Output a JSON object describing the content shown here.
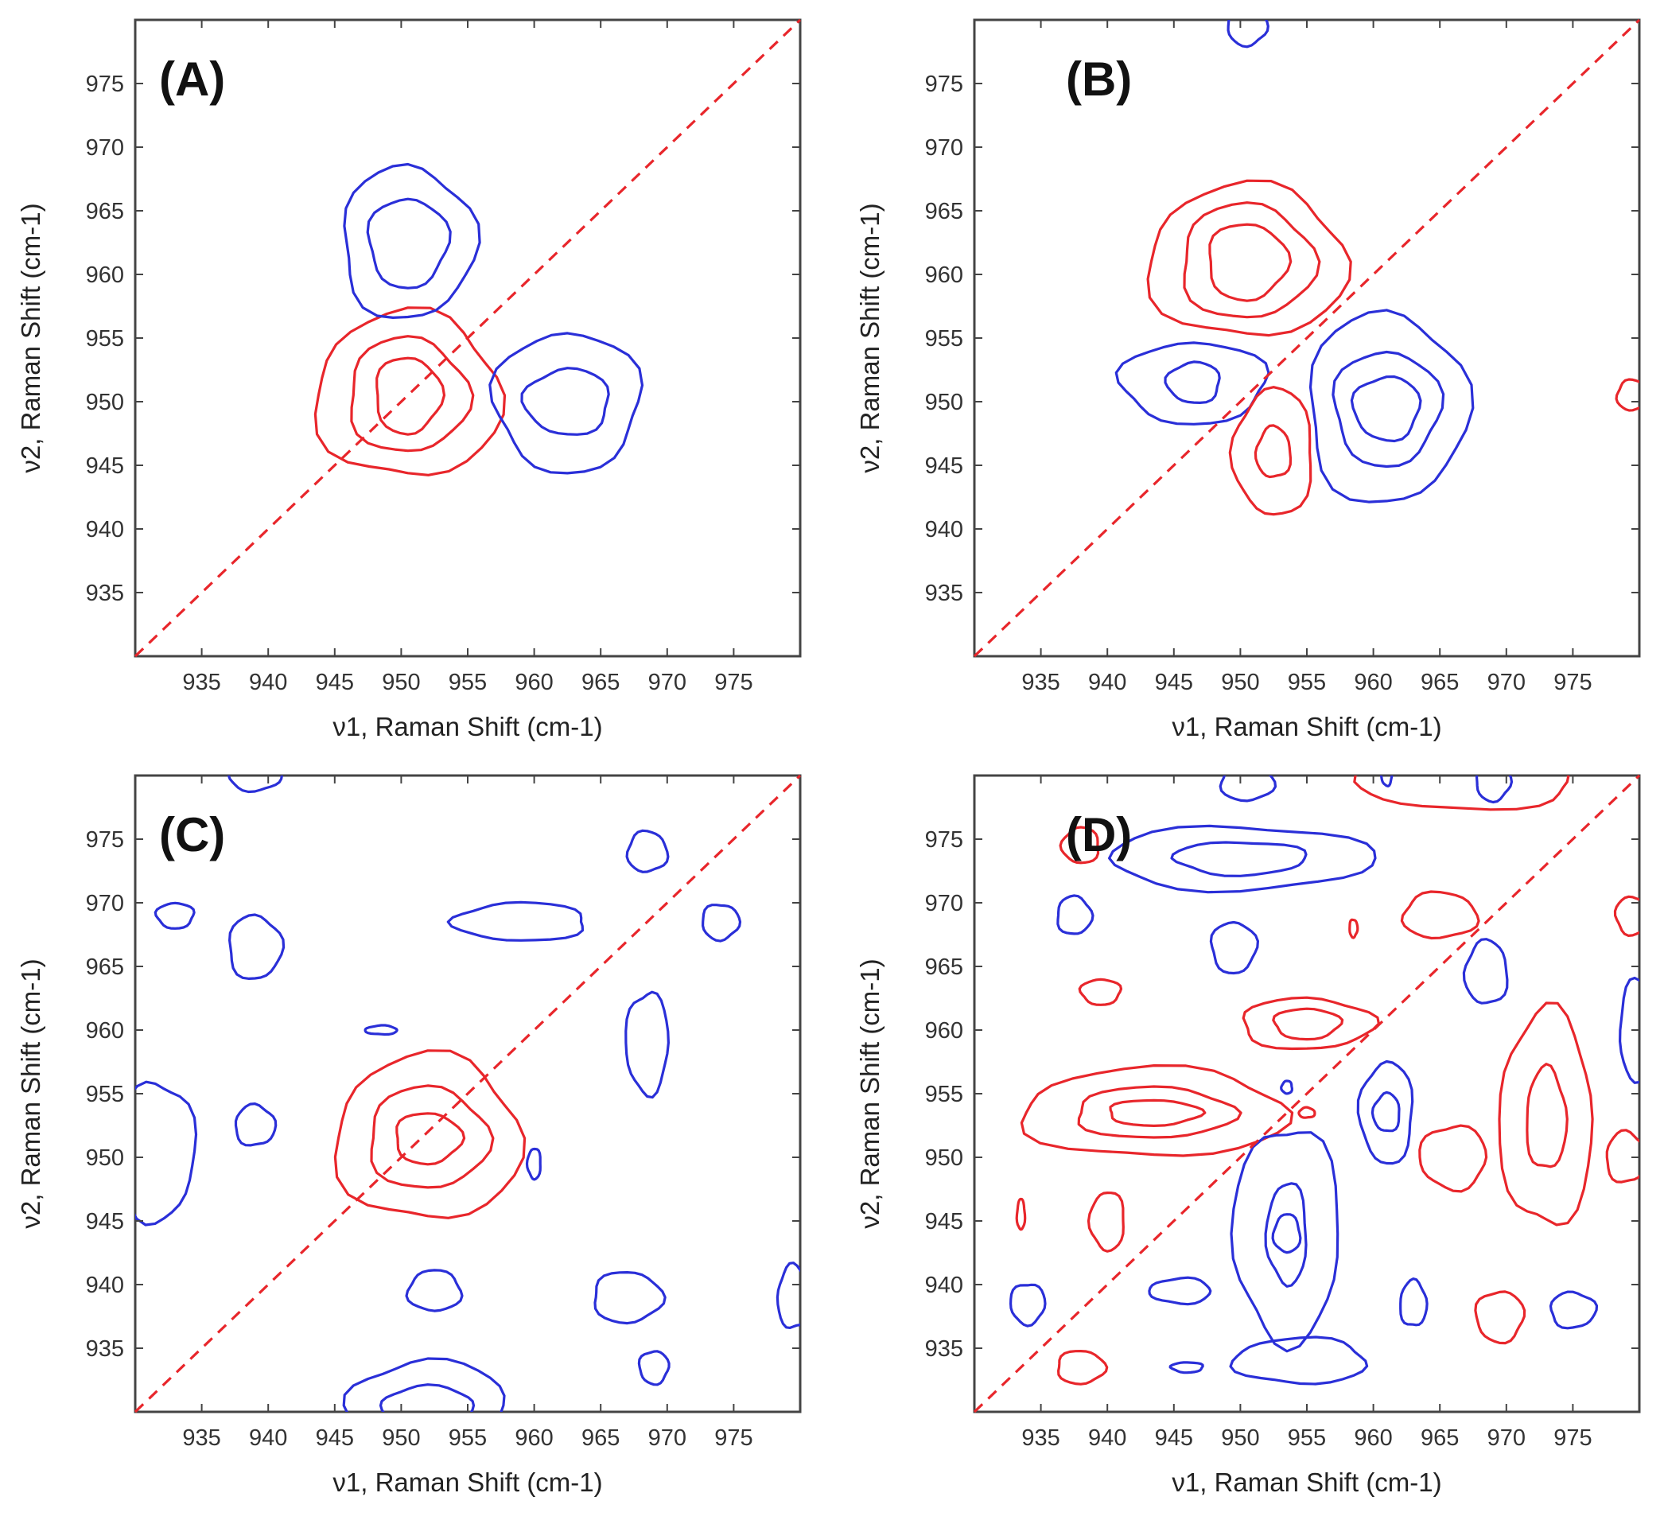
{
  "chart_data": [
    {
      "type": "contour",
      "panel": "(A)",
      "xlabel": "ν1, Raman Shift (cm-1)",
      "ylabel": "ν2, Raman Shift (cm-1)",
      "xlim": [
        930,
        980
      ],
      "ylim": [
        930,
        980
      ],
      "xticks": [
        935,
        940,
        945,
        950,
        955,
        960,
        965,
        970,
        975
      ],
      "yticks": [
        935,
        940,
        945,
        950,
        955,
        960,
        965,
        970,
        975
      ],
      "diagonal": true,
      "contours": [
        {
          "sign": "positive",
          "cx": 950.5,
          "cy": 950.5,
          "radii": [
            [
              7,
              6.5
            ],
            [
              4.5,
              4.5
            ],
            [
              2.5,
              3
            ]
          ]
        },
        {
          "sign": "negative",
          "cx": 950.5,
          "cy": 962.5,
          "radii": [
            [
              5,
              6
            ],
            [
              3,
              3.5
            ]
          ]
        },
        {
          "sign": "negative",
          "cx": 962.5,
          "cy": 950,
          "radii": [
            [
              5.5,
              5.5
            ],
            [
              3.2,
              2.6
            ]
          ]
        }
      ]
    },
    {
      "type": "contour",
      "panel": "(B)",
      "xlabel": "ν1, Raman Shift (cm-1)",
      "ylabel": "ν2, Raman Shift (cm-1)",
      "xlim": [
        930,
        980
      ],
      "ylim": [
        930,
        980
      ],
      "xticks": [
        935,
        940,
        945,
        950,
        955,
        960,
        965,
        970,
        975
      ],
      "yticks": [
        935,
        940,
        945,
        950,
        955,
        960,
        965,
        970,
        975
      ],
      "diagonal": true,
      "contours": [
        {
          "sign": "positive",
          "cx": 950.5,
          "cy": 961,
          "radii": [
            [
              7.5,
              6
            ],
            [
              5,
              4.5
            ],
            [
              3,
              3
            ]
          ]
        },
        {
          "sign": "negative",
          "cx": 961,
          "cy": 949.5,
          "radii": [
            [
              6,
              7.5
            ],
            [
              4,
              4.5
            ],
            [
              2.5,
              2.5
            ]
          ]
        },
        {
          "sign": "negative",
          "cx": 946.5,
          "cy": 951.5,
          "radii": [
            [
              5.5,
              3.2
            ],
            [
              2,
              1.6
            ]
          ]
        },
        {
          "sign": "positive",
          "cx": 952.5,
          "cy": 946,
          "radii": [
            [
              3,
              5
            ],
            [
              1.3,
              2
            ]
          ]
        },
        {
          "sign": "positive",
          "cx": 979.5,
          "cy": 950.5,
          "radii": [
            [
              1.2,
              1.2
            ]
          ]
        },
        {
          "sign": "negative",
          "cx": 950.5,
          "cy": 979.5,
          "radii": [
            [
              1.5,
              1.5
            ]
          ]
        }
      ]
    },
    {
      "type": "contour",
      "panel": "(C)",
      "xlabel": "ν1, Raman Shift (cm-1)",
      "ylabel": "ν2, Raman Shift (cm-1)",
      "xlim": [
        930,
        980
      ],
      "ylim": [
        930,
        980
      ],
      "xticks": [
        935,
        940,
        945,
        950,
        955,
        960,
        965,
        970,
        975
      ],
      "yticks": [
        935,
        940,
        945,
        950,
        955,
        960,
        965,
        970,
        975
      ],
      "diagonal": true,
      "contours": [
        {
          "sign": "positive",
          "cx": 952,
          "cy": 951.5,
          "radii": [
            [
              7,
              6.5
            ],
            [
              4.5,
              4
            ],
            [
              2.5,
              2
            ]
          ]
        },
        {
          "sign": "negative",
          "cx": 939,
          "cy": 966.5,
          "radii": [
            [
              2,
              2.5
            ]
          ]
        },
        {
          "sign": "negative",
          "cx": 933,
          "cy": 969,
          "radii": [
            [
              1.4,
              1
            ]
          ]
        },
        {
          "sign": "negative",
          "cx": 959,
          "cy": 968.5,
          "radii": [
            [
              5,
              1.5
            ]
          ]
        },
        {
          "sign": "negative",
          "cx": 968.5,
          "cy": 974,
          "radii": [
            [
              1.5,
              1.6
            ]
          ]
        },
        {
          "sign": "negative",
          "cx": 974,
          "cy": 968.5,
          "radii": [
            [
              1.4,
              1.4
            ]
          ]
        },
        {
          "sign": "negative",
          "cx": 968.5,
          "cy": 959,
          "radii": [
            [
              1.6,
              4
            ]
          ]
        },
        {
          "sign": "negative",
          "cx": 948.5,
          "cy": 960,
          "radii": [
            [
              1.2,
              0.35
            ]
          ]
        },
        {
          "sign": "negative",
          "cx": 939,
          "cy": 952.5,
          "radii": [
            [
              1.5,
              1.6
            ]
          ]
        },
        {
          "sign": "negative",
          "cx": 931.5,
          "cy": 950.5,
          "radii": [
            [
              3,
              5.5
            ]
          ]
        },
        {
          "sign": "negative",
          "cx": 960,
          "cy": 949.5,
          "radii": [
            [
              0.5,
              1.2
            ]
          ]
        },
        {
          "sign": "negative",
          "cx": 952.5,
          "cy": 939.5,
          "radii": [
            [
              2,
              1.6
            ]
          ]
        },
        {
          "sign": "negative",
          "cx": 967,
          "cy": 939,
          "radii": [
            [
              2.6,
              2
            ]
          ]
        },
        {
          "sign": "negative",
          "cx": 969,
          "cy": 933.5,
          "radii": [
            [
              1.1,
              1.3
            ]
          ]
        },
        {
          "sign": "negative",
          "cx": 952,
          "cy": 930.5,
          "radii": [
            [
              6,
              3.5
            ],
            [
              3.5,
              1.5
            ]
          ]
        },
        {
          "sign": "negative",
          "cx": 979.5,
          "cy": 939,
          "radii": [
            [
              1.2,
              2.5
            ]
          ]
        },
        {
          "sign": "negative",
          "cx": 939,
          "cy": 980,
          "radii": [
            [
              2,
              1.2
            ]
          ]
        }
      ]
    },
    {
      "type": "contour",
      "panel": "(D)",
      "xlabel": "ν1, Raman Shift (cm-1)",
      "ylabel": "ν2, Raman Shift (cm-1)",
      "xlim": [
        930,
        980
      ],
      "ylim": [
        930,
        980
      ],
      "xticks": [
        935,
        940,
        945,
        950,
        955,
        960,
        965,
        970,
        975
      ],
      "yticks": [
        935,
        940,
        945,
        950,
        955,
        960,
        965,
        970,
        975
      ],
      "diagonal": true,
      "contours": [
        {
          "sign": "positive",
          "cx": 943.5,
          "cy": 953.5,
          "radii": [
            [
              10,
              3.5
            ],
            [
              6,
              2
            ],
            [
              3.5,
              1
            ]
          ]
        },
        {
          "sign": "positive",
          "cx": 955,
          "cy": 960.5,
          "radii": [
            [
              5,
              2
            ],
            [
              2.5,
              1.2
            ]
          ]
        },
        {
          "sign": "positive",
          "cx": 939.5,
          "cy": 963,
          "radii": [
            [
              1.5,
              1
            ]
          ]
        },
        {
          "sign": "positive",
          "cx": 938,
          "cy": 974.5,
          "radii": [
            [
              1.4,
              1.4
            ]
          ]
        },
        {
          "sign": "positive",
          "cx": 965,
          "cy": 969,
          "radii": [
            [
              2.8,
              1.8
            ]
          ]
        },
        {
          "sign": "positive",
          "cx": 958.5,
          "cy": 968,
          "radii": [
            [
              0.3,
              0.7
            ]
          ]
        },
        {
          "sign": "positive",
          "cx": 966,
          "cy": 950,
          "radii": [
            [
              2.5,
              2.5
            ]
          ]
        },
        {
          "sign": "positive",
          "cx": 973,
          "cy": 953,
          "radii": [
            [
              3.5,
              8.5
            ],
            [
              1.5,
              4
            ]
          ]
        },
        {
          "sign": "positive",
          "cx": 979,
          "cy": 950,
          "radii": [
            [
              1.5,
              2
            ]
          ]
        },
        {
          "sign": "positive",
          "cx": 979.5,
          "cy": 969,
          "radii": [
            [
              1.3,
              1.5
            ]
          ]
        },
        {
          "sign": "positive",
          "cx": 940,
          "cy": 945,
          "radii": [
            [
              1.3,
              2.3
            ]
          ]
        },
        {
          "sign": "positive",
          "cx": 933.5,
          "cy": 945.5,
          "radii": [
            [
              0.3,
              1.2
            ]
          ]
        },
        {
          "sign": "positive",
          "cx": 938,
          "cy": 933.5,
          "radii": [
            [
              1.8,
              1.3
            ]
          ]
        },
        {
          "sign": "positive",
          "cx": 969.5,
          "cy": 937.5,
          "radii": [
            [
              1.8,
              2
            ]
          ]
        },
        {
          "sign": "positive",
          "cx": 967,
          "cy": 979.5,
          "radii": [
            [
              8,
              2.2
            ]
          ]
        },
        {
          "sign": "positive",
          "cx": 955,
          "cy": 953.5,
          "radii": [
            [
              0.6,
              0.4
            ]
          ]
        },
        {
          "sign": "negative",
          "cx": 950,
          "cy": 973.5,
          "radii": [
            [
              10,
              2.5
            ],
            [
              5,
              1.3
            ]
          ]
        },
        {
          "sign": "negative",
          "cx": 953.5,
          "cy": 944,
          "radii": [
            [
              4,
              8.5
            ],
            [
              1.5,
              4
            ],
            [
              1,
              1.5
            ]
          ]
        },
        {
          "sign": "negative",
          "cx": 954.5,
          "cy": 934,
          "radii": [
            [
              5,
              1.8
            ]
          ]
        },
        {
          "sign": "negative",
          "cx": 937.5,
          "cy": 969,
          "radii": [
            [
              1.3,
              1.5
            ]
          ]
        },
        {
          "sign": "negative",
          "cx": 949.5,
          "cy": 966.5,
          "radii": [
            [
              1.7,
              2
            ]
          ]
        },
        {
          "sign": "negative",
          "cx": 961,
          "cy": 953.5,
          "radii": [
            [
              2,
              4
            ],
            [
              1,
              1.5
            ]
          ]
        },
        {
          "sign": "negative",
          "cx": 968.5,
          "cy": 964.5,
          "radii": [
            [
              1.6,
              2.5
            ]
          ]
        },
        {
          "sign": "negative",
          "cx": 980,
          "cy": 960,
          "radii": [
            [
              1.5,
              4
            ]
          ]
        },
        {
          "sign": "negative",
          "cx": 934,
          "cy": 938.5,
          "radii": [
            [
              1.3,
              1.6
            ]
          ]
        },
        {
          "sign": "negative",
          "cx": 945.5,
          "cy": 939.5,
          "radii": [
            [
              2.3,
              1
            ]
          ]
        },
        {
          "sign": "negative",
          "cx": 963,
          "cy": 938.5,
          "radii": [
            [
              1,
              1.8
            ]
          ]
        },
        {
          "sign": "negative",
          "cx": 975,
          "cy": 938,
          "radii": [
            [
              1.7,
              1.4
            ]
          ]
        },
        {
          "sign": "negative",
          "cx": 946,
          "cy": 933.5,
          "radii": [
            [
              1.2,
              0.4
            ]
          ]
        },
        {
          "sign": "negative",
          "cx": 953.5,
          "cy": 955.5,
          "radii": [
            [
              0.4,
              0.5
            ]
          ]
        },
        {
          "sign": "negative",
          "cx": 950.5,
          "cy": 979.5,
          "radii": [
            [
              2,
              1.5
            ]
          ]
        },
        {
          "sign": "negative",
          "cx": 969,
          "cy": 979.5,
          "radii": [
            [
              1.3,
              1.5
            ]
          ]
        },
        {
          "sign": "negative",
          "cx": 961,
          "cy": 980,
          "radii": [
            [
              0.4,
              0.8
            ]
          ]
        }
      ]
    }
  ],
  "colors": {
    "positive": "#e8262b",
    "negative": "#2a2fd8",
    "diagonal": "#e8262b"
  }
}
